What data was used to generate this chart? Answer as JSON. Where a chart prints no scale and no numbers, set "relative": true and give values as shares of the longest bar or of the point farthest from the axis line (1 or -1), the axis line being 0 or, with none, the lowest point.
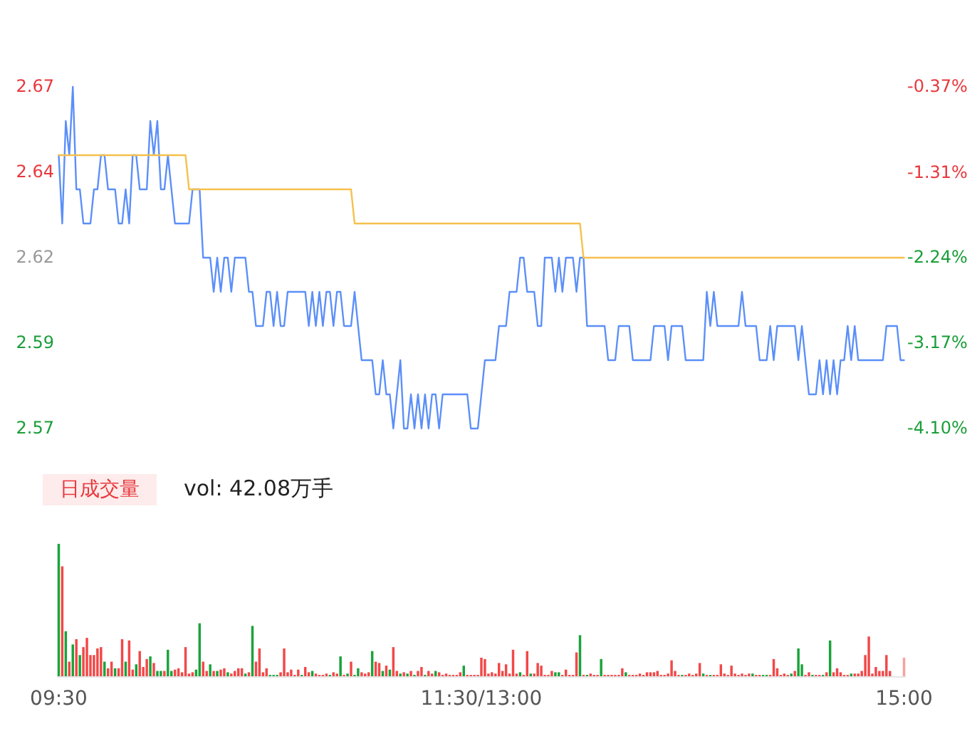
{
  "chart_data": [
    {
      "type": "line",
      "ylim": [
        2.57,
        2.67
      ],
      "categories": [
        null,
        null,
        null,
        null,
        null,
        null,
        null,
        null,
        null,
        null,
        null,
        null,
        null,
        null,
        null,
        null,
        null,
        null,
        null,
        null,
        null,
        null,
        null,
        null,
        null,
        null,
        null,
        null,
        null,
        null,
        null,
        null,
        null,
        null,
        null,
        null,
        null,
        null,
        null,
        null,
        null,
        null,
        null,
        null,
        null,
        null,
        null,
        null,
        null,
        null,
        null,
        null,
        null,
        null,
        null,
        null,
        null,
        null,
        null,
        null,
        null,
        null,
        null,
        null,
        null,
        null,
        null,
        null,
        null,
        null,
        null,
        null,
        null,
        null,
        null,
        null,
        null,
        null,
        null,
        null,
        null,
        null,
        null,
        null,
        null,
        null,
        null,
        null,
        null,
        null,
        null,
        null,
        null,
        null,
        null,
        null,
        null,
        null,
        null,
        null,
        null,
        null,
        null,
        null,
        null,
        null,
        null,
        null,
        null,
        null,
        null,
        null,
        null,
        null,
        null,
        null,
        null,
        null,
        null,
        null,
        null,
        null,
        null,
        null,
        null,
        null,
        null,
        null,
        null,
        null,
        null,
        null,
        null,
        null,
        null,
        null,
        null,
        null,
        null,
        null,
        null,
        null,
        null,
        null,
        null,
        null,
        null,
        null,
        null,
        null,
        null,
        null,
        null,
        null,
        null,
        null,
        null,
        null,
        null,
        null,
        null,
        null,
        null,
        null,
        null,
        null,
        null,
        null,
        null,
        null,
        null,
        null,
        null,
        null,
        null,
        null,
        null,
        null,
        null,
        null,
        null,
        null,
        null,
        null,
        null,
        null,
        null,
        null,
        null,
        null,
        null,
        null,
        null,
        null,
        null,
        null,
        null,
        null,
        null,
        null,
        null,
        null,
        null,
        null,
        null,
        null,
        null,
        null,
        null,
        null,
        null,
        null,
        null,
        null,
        null,
        null,
        null,
        null,
        null,
        null,
        null,
        null,
        null,
        null,
        null,
        null,
        null,
        null,
        null,
        null,
        null,
        null,
        null,
        null,
        null,
        null,
        null,
        null,
        null,
        null,
        null
      ],
      "yticks": [
        {
          "value": 2.57,
          "label": "2.57"
        },
        {
          "value": 2.595,
          "label": "2.59"
        },
        {
          "value": 2.62,
          "label": "2.62"
        },
        {
          "value": 2.645,
          "label": "2.64"
        },
        {
          "value": 2.67,
          "label": "2.67"
        }
      ],
      "y2lim": [
        -4.1,
        -0.37
      ],
      "y2ticks": [
        {
          "value": -4.1,
          "label": "-4.10%"
        },
        {
          "value": -3.17,
          "label": "-3.17%"
        },
        {
          "value": -2.24,
          "label": "-2.24%"
        },
        {
          "value": -1.31,
          "label": "-1.31%"
        },
        {
          "value": -0.37,
          "label": "-0.37%"
        }
      ],
      "series": [
        {
          "type": "line",
          "color": "#5b8ff9",
          "values": [
            2.65,
            2.63,
            2.66,
            2.65,
            2.67,
            2.64,
            2.64,
            2.63,
            2.63,
            2.63,
            2.64,
            2.64,
            2.65,
            2.65,
            2.64,
            2.64,
            2.64,
            2.63,
            2.63,
            2.64,
            2.63,
            2.65,
            2.65,
            2.64,
            2.64,
            2.64,
            2.66,
            2.65,
            2.66,
            2.64,
            2.64,
            2.65,
            2.64,
            2.63,
            2.63,
            2.63,
            2.63,
            2.63,
            2.64,
            2.64,
            2.64,
            2.62,
            2.62,
            2.62,
            2.61,
            2.62,
            2.61,
            2.62,
            2.62,
            2.61,
            2.62,
            2.62,
            2.62,
            2.62,
            2.61,
            2.61,
            2.6,
            2.6,
            2.6,
            2.61,
            2.61,
            2.6,
            2.61,
            2.6,
            2.6,
            2.61,
            2.61,
            2.61,
            2.61,
            2.61,
            2.61,
            2.6,
            2.61,
            2.6,
            2.61,
            2.6,
            2.61,
            2.61,
            2.6,
            2.61,
            2.61,
            2.6,
            2.6,
            2.6,
            2.61,
            2.6,
            2.59,
            2.59,
            2.59,
            2.59,
            2.58,
            2.58,
            2.59,
            2.58,
            2.58,
            2.57,
            2.58,
            2.59,
            2.57,
            2.57,
            2.58,
            2.57,
            2.58,
            2.57,
            2.58,
            2.57,
            2.58,
            2.58,
            2.57,
            2.58,
            2.58,
            2.58,
            2.58,
            2.58,
            2.58,
            2.58,
            2.58,
            2.57,
            2.57,
            2.57,
            2.58,
            2.59,
            2.59,
            2.59,
            2.59,
            2.6,
            2.6,
            2.6,
            2.61,
            2.61,
            2.61,
            2.62,
            2.62,
            2.61,
            2.61,
            2.61,
            2.6,
            2.6,
            2.62,
            2.62,
            2.62,
            2.61,
            2.62,
            2.61,
            2.62,
            2.62,
            2.62,
            2.61,
            2.62,
            2.62,
            2.6,
            2.6,
            2.6,
            2.6,
            2.6,
            2.6,
            2.59,
            2.59,
            2.59,
            2.6,
            2.6,
            2.6,
            2.6,
            2.59,
            2.59,
            2.59,
            2.59,
            2.59,
            2.59,
            2.6,
            2.6,
            2.6,
            2.6,
            2.59,
            2.6,
            2.6,
            2.6,
            2.6,
            2.59,
            2.59,
            2.59,
            2.59,
            2.59,
            2.59,
            2.61,
            2.6,
            2.61,
            2.6,
            2.6,
            2.6,
            2.6,
            2.6,
            2.6,
            2.6,
            2.61,
            2.6,
            2.6,
            2.6,
            2.6,
            2.59,
            2.59,
            2.59,
            2.6,
            2.59,
            2.6,
            2.6,
            2.6,
            2.6,
            2.6,
            2.6,
            2.59,
            2.6,
            2.59,
            2.58,
            2.58,
            2.58,
            2.59,
            2.58,
            2.59,
            2.58,
            2.59,
            2.58,
            2.59,
            2.59,
            2.6,
            2.59,
            2.6,
            2.59,
            2.59,
            2.59,
            2.59,
            2.59,
            2.59,
            2.59,
            2.59,
            2.6,
            2.6,
            2.6,
            2.6,
            2.59,
            2.59
          ]
        },
        {
          "type": "line",
          "color": "#f6c04c",
          "values": [
            2.65,
            2.65,
            2.65,
            2.65,
            2.65,
            2.65,
            2.65,
            2.65,
            2.65,
            2.65,
            2.65,
            2.65,
            2.65,
            2.65,
            2.65,
            2.65,
            2.65,
            2.65,
            2.65,
            2.65,
            2.65,
            2.65,
            2.65,
            2.65,
            2.65,
            2.65,
            2.65,
            2.65,
            2.65,
            2.65,
            2.65,
            2.65,
            2.65,
            2.65,
            2.65,
            2.65,
            2.65,
            2.64,
            2.64,
            2.64,
            2.64,
            2.64,
            2.64,
            2.64,
            2.64,
            2.64,
            2.64,
            2.64,
            2.64,
            2.64,
            2.64,
            2.64,
            2.64,
            2.64,
            2.64,
            2.64,
            2.64,
            2.64,
            2.64,
            2.64,
            2.64,
            2.64,
            2.64,
            2.64,
            2.64,
            2.64,
            2.64,
            2.64,
            2.64,
            2.64,
            2.64,
            2.64,
            2.64,
            2.64,
            2.64,
            2.64,
            2.64,
            2.64,
            2.64,
            2.64,
            2.64,
            2.64,
            2.64,
            2.64,
            2.63,
            2.63,
            2.63,
            2.63,
            2.63,
            2.63,
            2.63,
            2.63,
            2.63,
            2.63,
            2.63,
            2.63,
            2.63,
            2.63,
            2.63,
            2.63,
            2.63,
            2.63,
            2.63,
            2.63,
            2.63,
            2.63,
            2.63,
            2.63,
            2.63,
            2.63,
            2.63,
            2.63,
            2.63,
            2.63,
            2.63,
            2.63,
            2.63,
            2.63,
            2.63,
            2.63,
            2.63,
            2.63,
            2.63,
            2.63,
            2.63,
            2.63,
            2.63,
            2.63,
            2.63,
            2.63,
            2.63,
            2.63,
            2.63,
            2.63,
            2.63,
            2.63,
            2.63,
            2.63,
            2.63,
            2.63,
            2.63,
            2.63,
            2.63,
            2.63,
            2.63,
            2.63,
            2.63,
            2.63,
            2.63,
            2.62,
            2.62,
            2.62,
            2.62,
            2.62,
            2.62,
            2.62,
            2.62,
            2.62,
            2.62,
            2.62,
            2.62,
            2.62,
            2.62,
            2.62,
            2.62,
            2.62,
            2.62,
            2.62,
            2.62,
            2.62,
            2.62,
            2.62,
            2.62,
            2.62,
            2.62,
            2.62,
            2.62,
            2.62,
            2.62,
            2.62,
            2.62,
            2.62,
            2.62,
            2.62,
            2.62,
            2.62,
            2.62,
            2.62,
            2.62,
            2.62,
            2.62,
            2.62,
            2.62,
            2.62,
            2.62,
            2.62,
            2.62,
            2.62,
            2.62,
            2.62,
            2.62,
            2.62,
            2.62,
            2.62,
            2.62,
            2.62,
            2.62,
            2.62,
            2.62,
            2.62,
            2.62,
            2.62,
            2.62,
            2.62,
            2.62,
            2.62,
            2.62,
            2.62,
            2.62,
            2.62,
            2.62,
            2.62,
            2.62,
            2.62,
            2.62,
            2.62,
            2.62,
            2.62,
            2.62,
            2.62,
            2.62,
            2.62,
            2.62,
            2.62,
            2.62,
            2.62,
            2.62,
            2.62,
            2.62,
            2.62,
            2.62
          ]
        }
      ]
    },
    {
      "type": "bar",
      "title": "日成交量",
      "subtitle": "vol: 42.08万手",
      "relative": true,
      "categories": [
        "09:30",
        null,
        null,
        null,
        null,
        null,
        null,
        null,
        null,
        null,
        null,
        null,
        null,
        null,
        null,
        null,
        null,
        null,
        null,
        null,
        null,
        null,
        null,
        null,
        null,
        null,
        null,
        null,
        null,
        null,
        null,
        null,
        null,
        null,
        null,
        null,
        null,
        null,
        null,
        null,
        null,
        null,
        null,
        null,
        null,
        null,
        null,
        null,
        null,
        null,
        null,
        null,
        null,
        null,
        null,
        null,
        null,
        null,
        null,
        null,
        null,
        null,
        null,
        null,
        null,
        null,
        null,
        null,
        null,
        null,
        null,
        null,
        null,
        null,
        null,
        null,
        null,
        null,
        null,
        null,
        null,
        null,
        null,
        null,
        null,
        null,
        null,
        null,
        null,
        null,
        null,
        null,
        null,
        null,
        null,
        null,
        null,
        null,
        null,
        null,
        null,
        null,
        null,
        null,
        null,
        null,
        null,
        null,
        null,
        null,
        null,
        null,
        null,
        null,
        null,
        null,
        null,
        null,
        null,
        null,
        "11:30/13:00",
        null,
        null,
        null,
        null,
        null,
        null,
        null,
        null,
        null,
        null,
        null,
        null,
        null,
        null,
        null,
        null,
        null,
        null,
        null,
        null,
        null,
        null,
        null,
        null,
        null,
        null,
        null,
        null,
        null,
        null,
        null,
        null,
        null,
        null,
        null,
        null,
        null,
        null,
        null,
        null,
        null,
        null,
        null,
        null,
        null,
        null,
        null,
        null,
        null,
        null,
        null,
        null,
        null,
        null,
        null,
        null,
        null,
        null,
        null,
        null,
        null,
        null,
        null,
        null,
        null,
        null,
        null,
        null,
        null,
        null,
        null,
        null,
        null,
        null,
        null,
        null,
        null,
        null,
        null,
        null,
        null,
        null,
        null,
        null,
        null,
        null,
        null,
        null,
        null,
        null,
        null,
        null,
        null,
        null,
        null,
        null,
        null,
        null,
        null,
        null,
        null,
        null,
        null,
        null,
        null,
        null,
        null,
        null,
        null,
        null,
        null,
        null,
        null,
        null,
        null,
        null,
        null,
        null,
        null,
        "15:00"
      ],
      "values": [
        1.0,
        0.83,
        0.34,
        0.11,
        0.24,
        0.28,
        0.16,
        0.22,
        0.29,
        0.16,
        0.16,
        0.21,
        0.22,
        0.11,
        0.06,
        0.11,
        0.06,
        0.06,
        0.28,
        0.11,
        0.27,
        0.05,
        0.09,
        0.19,
        0.07,
        0.13,
        0.15,
        0.1,
        0.04,
        0.04,
        0.04,
        0.2,
        0.04,
        0.05,
        0.06,
        0.03,
        0.22,
        0.02,
        0.03,
        0.05,
        0.4,
        0.11,
        0.04,
        0.09,
        0.04,
        0.04,
        0.05,
        0.06,
        0.03,
        0.02,
        0.04,
        0.06,
        0.06,
        0.02,
        0.03,
        0.38,
        0.11,
        0.21,
        0.03,
        0.06,
        0.01,
        0.01,
        0.01,
        0.03,
        0.21,
        0.03,
        0.05,
        0.01,
        0.05,
        0.01,
        0.07,
        0.03,
        0.04,
        0.02,
        0.01,
        0.01,
        0.02,
        0.01,
        0.03,
        0.02,
        0.15,
        0.01,
        0.02,
        0.11,
        0.01,
        0.06,
        0.03,
        0.02,
        0.03,
        0.19,
        0.11,
        0.1,
        0.04,
        0.08,
        0.05,
        0.22,
        0.04,
        0.02,
        0.03,
        0.02,
        0.04,
        0.01,
        0.04,
        0.07,
        0.01,
        0.04,
        0.02,
        0.04,
        0.03,
        0.01,
        0.02,
        0.01,
        0.01,
        0.01,
        0.03,
        0.08,
        0.01,
        0.01,
        0.01,
        0.01,
        0.14,
        0.13,
        0.02,
        0.03,
        0.02,
        0.1,
        0.04,
        0.09,
        0.02,
        0.2,
        0.02,
        0.03,
        0.01,
        0.19,
        0.02,
        0.02,
        0.1,
        0.08,
        0.01,
        0.01,
        0.04,
        0.03,
        0.03,
        0.01,
        0.05,
        0.01,
        0.01,
        0.18,
        0.31,
        0.01,
        0.01,
        0.02,
        0.01,
        0.01,
        0.13,
        0.01,
        0.01,
        0.01,
        0.01,
        0.01,
        0.06,
        0.03,
        0.01,
        0.01,
        0.01,
        0.02,
        0.01,
        0.03,
        0.03,
        0.03,
        0.04,
        0.01,
        0.01,
        0.02,
        0.12,
        0.04,
        0.01,
        0.01,
        0.01,
        0.02,
        0.01,
        0.02,
        0.1,
        0.02,
        0.01,
        0.01,
        0.01,
        0.01,
        0.09,
        0.02,
        0.01,
        0.08,
        0.02,
        0.01,
        0.02,
        0.01,
        0.02,
        0.02,
        0.01,
        0.01,
        0.01,
        0.01,
        0.01,
        0.13,
        0.06,
        0.01,
        0.02,
        0.01,
        0.02,
        0.04,
        0.21,
        0.09,
        0.01,
        0.03,
        0.01,
        0.01,
        0.01,
        0.01,
        0.03,
        0.27,
        0.03,
        0.06,
        0.03,
        0.01,
        0.01,
        0.02,
        0.02,
        0.02,
        0.04,
        0.16,
        0.3,
        0.02,
        0.07,
        0.04,
        0.04,
        0.16,
        0.04,
        null,
        null,
        null,
        0.14
      ],
      "colors": [
        "#1aa33a",
        "#f24848",
        "#1aa33a",
        "#f24848",
        "#1aa33a",
        "#f24848",
        "#1aa33a",
        "#f24848",
        "#f24848",
        "#f24848",
        "#f24848",
        "#f24848",
        "#f24848",
        "#1aa33a",
        "#f24848",
        "#f24848",
        "#1aa33a",
        "#f24848",
        "#f24848",
        "#1aa33a",
        "#f24848",
        "#f24848",
        "#1aa33a",
        "#f24848",
        "#f24848",
        "#f24848",
        "#1aa33a",
        "#f24848",
        "#1aa33a",
        "#1aa33a",
        "#f24848",
        "#1aa33a",
        "#1aa33a",
        "#f24848",
        "#f24848",
        "#f24848",
        "#f24848",
        "#f24848",
        "#f24848",
        "#1aa33a",
        "#1aa33a",
        "#f24848",
        "#f24848",
        "#1aa33a",
        "#f24848",
        "#1aa33a",
        "#f24848",
        "#f24848",
        "#1aa33a",
        "#f24848",
        "#f24848",
        "#f24848",
        "#f24848",
        "#1aa33a",
        "#f24848",
        "#1aa33a",
        "#f24848",
        "#f24848",
        "#f24848",
        "#f24848",
        "#1aa33a",
        "#1aa33a",
        "#1aa33a",
        "#f24848",
        "#f24848",
        "#f24848",
        "#f24848",
        "#f24848",
        "#f24848",
        "#1aa33a",
        "#f24848",
        "#f24848",
        "#1aa33a",
        "#f24848",
        "#f24848",
        "#f24848",
        "#f24848",
        "#1aa33a",
        "#f24848",
        "#f24848",
        "#1aa33a",
        "#f24848",
        "#1aa33a",
        "#f24848",
        "#1aa33a",
        "#1aa33a",
        "#f24848",
        "#f24848",
        "#f24848",
        "#1aa33a",
        "#f24848",
        "#f24848",
        "#1aa33a",
        "#f24848",
        "#1aa33a",
        "#f24848",
        "#f24848",
        "#1aa33a",
        "#f24848",
        "#1aa33a",
        "#f24848",
        "#1aa33a",
        "#f24848",
        "#f24848",
        "#1aa33a",
        "#f24848",
        "#f24848",
        "#1aa33a",
        "#f24848",
        "#f24848",
        "#f24848",
        "#f24848",
        "#f24848",
        "#f24848",
        "#f24848",
        "#1aa33a",
        "#f24848",
        "#f24848",
        "#f24848",
        "#f24848",
        "#f24848",
        "#f24848",
        "#f24848",
        "#f24848",
        "#f24848",
        "#f24848",
        "#f24848",
        "#f24848",
        "#f24848",
        "#f24848",
        "#f24848",
        "#1aa33a",
        "#f24848",
        "#f24848",
        "#1aa33a",
        "#f24848",
        "#f24848",
        "#f24848",
        "#f24848",
        "#f24848",
        "#f24848",
        "#1aa33a",
        "#1aa33a",
        "#f24848",
        "#f24848",
        "#f24848",
        "#f24848",
        "#f24848",
        "#1aa33a",
        "#f24848",
        "#1aa33a",
        "#f24848",
        "#f24848",
        "#f24848",
        "#1aa33a",
        "#f24848",
        "#f24848",
        "#f24848",
        "#f24848",
        "#f24848",
        "#f24848",
        "#1aa33a",
        "#f24848",
        "#f24848",
        "#f24848",
        "#f24848",
        "#f24848",
        "#f24848",
        "#f24848",
        "#f24848",
        "#f24848",
        "#f24848",
        "#f24848",
        "#f24848",
        "#f24848",
        "#f24848",
        "#f24848",
        "#1aa33a",
        "#f24848",
        "#f24848",
        "#f24848",
        "#f24848",
        "#f24848",
        "#1aa33a",
        "#f24848",
        "#1aa33a",
        "#f24848",
        "#f24848",
        "#f24848",
        "#f24848",
        "#f24848",
        "#f24848",
        "#f24848",
        "#f24848",
        "#f24848",
        "#f24848",
        "#f24848",
        "#1aa33a",
        "#f24848",
        "#f24848",
        "#1aa33a",
        "#1aa33a",
        "#f24848",
        "#f24848",
        "#f24848",
        "#f24848",
        "#f24848",
        "#f24848",
        "#1aa33a",
        "#f24848",
        "#1aa33a",
        "#1aa33a",
        "#f24848",
        "#f24848",
        "#1aa33a",
        "#f24848",
        "#f24848",
        "#1aa33a",
        "#f24848",
        "#1aa33a",
        "#f24848",
        "#f24848",
        "#f24848",
        "#f24848",
        "#f24848",
        "#1aa33a",
        "#f24848",
        "#f24848",
        "#f24848",
        "#f24848",
        "#f24848",
        "#f24848",
        "#f24848",
        "#f24848",
        "#f24848",
        "#f24848",
        "#f24848",
        "#f24848",
        "#f24848",
        "#f24848",
        "#f7a1a1"
      ]
    }
  ]
}
